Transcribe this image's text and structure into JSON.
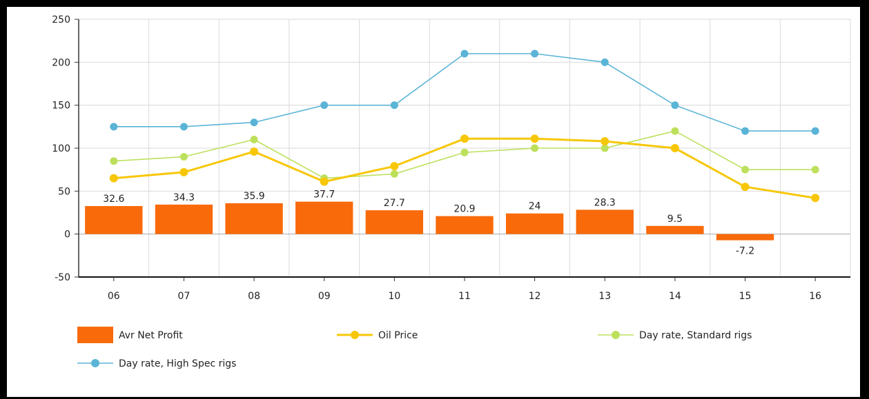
{
  "chart_data": {
    "type": "bar",
    "categories": [
      "06",
      "07",
      "08",
      "09",
      "10",
      "11",
      "12",
      "13",
      "14",
      "15",
      "16"
    ],
    "ylim": [
      -50,
      250
    ],
    "yticks": [
      250,
      200,
      150,
      100,
      50,
      0,
      -50
    ],
    "grid": true,
    "legend_position": "bottom",
    "series": [
      {
        "name": "Avr Net Profit",
        "kind": "bar",
        "color": "#f96a0a",
        "values": [
          32.6,
          34.3,
          35.9,
          37.7,
          27.7,
          20.9,
          24,
          28.3,
          9.5,
          -7.2,
          null
        ],
        "labels": [
          "32.6",
          "34.3",
          "35.9",
          "37.7",
          "27.7",
          "20.9",
          "24",
          "28.3",
          "9.5",
          "-7.2",
          ""
        ]
      },
      {
        "name": "Oil Price",
        "kind": "line",
        "color": "#f7c707",
        "values": [
          65,
          72,
          96,
          61,
          79,
          111,
          111,
          108,
          100,
          55,
          42
        ]
      },
      {
        "name": "Day rate, Standard rigs",
        "kind": "line",
        "color": "#bde05c",
        "values": [
          85,
          90,
          110,
          65,
          70,
          95,
          100,
          100,
          120,
          75,
          75
        ]
      },
      {
        "name": "Day rate, High Spec rigs",
        "kind": "line",
        "color": "#5ab4d6",
        "values": [
          125,
          125,
          130,
          150,
          150,
          210,
          210,
          200,
          150,
          120,
          120
        ]
      }
    ]
  }
}
